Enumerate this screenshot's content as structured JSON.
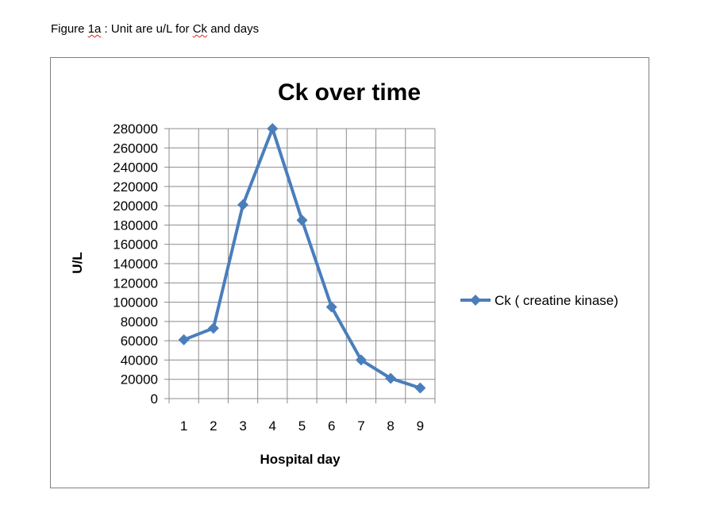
{
  "caption": {
    "prefix": "Figure ",
    "fig_id": "1a",
    "sep": " :  ",
    "mid": "Unit are u/L for ",
    "ck": "Ck",
    "suffix": " and days"
  },
  "chart_data": {
    "type": "line",
    "title": "Ck over time",
    "xlabel": "Hospital day",
    "ylabel": "U/L",
    "categories": [
      "1",
      "2",
      "3",
      "4",
      "5",
      "6",
      "7",
      "8",
      "9"
    ],
    "series": [
      {
        "name": "Ck ( creatine kinase)",
        "values": [
          61000,
          73000,
          201000,
          280000,
          185000,
          95000,
          40000,
          21000,
          11000
        ],
        "color": "#4a7ebb"
      }
    ],
    "ylim": [
      0,
      280000
    ],
    "ystep": 20000,
    "yticks": [
      "0",
      "20000",
      "40000",
      "60000",
      "80000",
      "100000",
      "120000",
      "140000",
      "160000",
      "180000",
      "200000",
      "220000",
      "240000",
      "260000",
      "280000"
    ],
    "grid": true,
    "legend": "right"
  }
}
